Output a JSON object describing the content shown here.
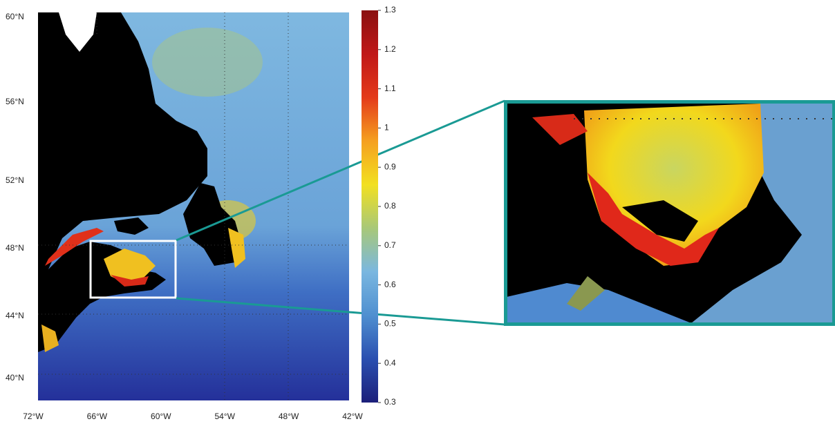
{
  "map": {
    "lat_labels": [
      "60°N",
      "56°N",
      "52°N",
      "48°N",
      "44°N",
      "40°N"
    ],
    "lon_labels": [
      "72°W",
      "66°W",
      "60°W",
      "54°W",
      "48°W",
      "42°W"
    ],
    "colorbar": {
      "lim": [
        0.3,
        1.3
      ],
      "ticks": [
        0.3,
        0.4,
        0.5,
        0.6,
        0.7,
        0.8,
        0.9,
        1,
        1.1,
        1.2,
        1.3
      ],
      "colors": [
        "#1c1f7a",
        "#2a4fb0",
        "#4f8fd0",
        "#7ab7e0",
        "#a8c878",
        "#f2e020",
        "#f5a020",
        "#e43a1a",
        "#c01818",
        "#8a1010"
      ]
    }
  }
}
